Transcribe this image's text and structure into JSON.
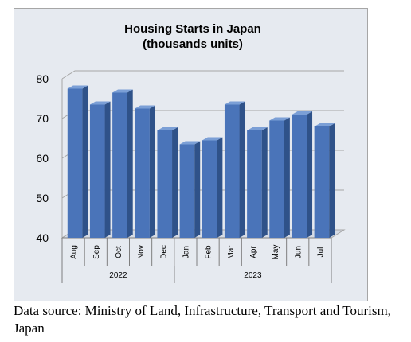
{
  "chart_data": {
    "type": "bar",
    "title_lines": [
      "Housing Starts in Japan",
      "(thousands units)"
    ],
    "categories": [
      "Aug",
      "Sep",
      "Oct",
      "Nov",
      "Dec",
      "Jan",
      "Feb",
      "Mar",
      "Apr",
      "May",
      "Jun",
      "Jul"
    ],
    "years": [
      {
        "label": "2022",
        "count": 5
      },
      {
        "label": "2023",
        "count": 7
      }
    ],
    "values": [
      77.5,
      73.5,
      76.5,
      72.5,
      67.0,
      63.5,
      64.5,
      73.5,
      67.0,
      69.5,
      71.0,
      68.0
    ],
    "ylim": [
      40,
      80
    ],
    "yticks": [
      "40",
      "50",
      "60",
      "70",
      "80"
    ],
    "grid": true,
    "colors": {
      "bar_front": "#4a74b9",
      "bar_side": "#2f5289",
      "bar_top": "#7b9fd6",
      "plot_bg": "#e6eaf0",
      "grid": "#a6a6a6"
    }
  },
  "source_note": "Data source: Ministry of Land, Infrastructure, Transport and Tourism, Japan"
}
